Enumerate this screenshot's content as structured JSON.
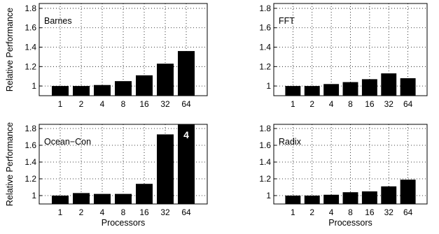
{
  "chart_data": [
    {
      "type": "bar",
      "title": "Barnes",
      "categories": [
        "1",
        "2",
        "4",
        "8",
        "16",
        "32",
        "64"
      ],
      "values": [
        1.0,
        1.0,
        1.01,
        1.05,
        1.11,
        1.23,
        1.36
      ],
      "ylim": [
        0.9,
        1.85
      ],
      "yticks": [
        "1",
        "1.2",
        "1.4",
        "1.6",
        "1.8"
      ],
      "xlabel": "",
      "ylabel": "Relative Performance",
      "grid": true
    },
    {
      "type": "bar",
      "title": "FFT",
      "categories": [
        "1",
        "2",
        "4",
        "8",
        "16",
        "32",
        "64"
      ],
      "values": [
        1.0,
        1.0,
        1.02,
        1.04,
        1.07,
        1.13,
        1.08
      ],
      "ylim": [
        0.9,
        1.85
      ],
      "yticks": [
        "1",
        "1.2",
        "1.4",
        "1.6",
        "1.8"
      ],
      "xlabel": "",
      "ylabel": "",
      "grid": true
    },
    {
      "type": "bar",
      "title": "Ocean−Con",
      "categories": [
        "1",
        "2",
        "4",
        "8",
        "16",
        "32",
        "64"
      ],
      "values": [
        1.0,
        1.03,
        1.02,
        1.02,
        1.14,
        1.73,
        1.85
      ],
      "ylim": [
        0.9,
        1.85
      ],
      "yticks": [
        "1",
        "1.2",
        "1.4",
        "1.6",
        "1.8"
      ],
      "xlabel": "Processors",
      "ylabel": "Relative Performance",
      "grid": true,
      "annotations": [
        {
          "category": "64",
          "text": "4"
        }
      ]
    },
    {
      "type": "bar",
      "title": "Radix",
      "categories": [
        "1",
        "2",
        "4",
        "8",
        "16",
        "32",
        "64"
      ],
      "values": [
        1.0,
        1.0,
        1.01,
        1.04,
        1.05,
        1.11,
        1.19
      ],
      "ylim": [
        0.9,
        1.85
      ],
      "yticks": [
        "1",
        "1.2",
        "1.4",
        "1.6",
        "1.8"
      ],
      "xlabel": "Processors",
      "ylabel": "",
      "grid": true
    }
  ]
}
